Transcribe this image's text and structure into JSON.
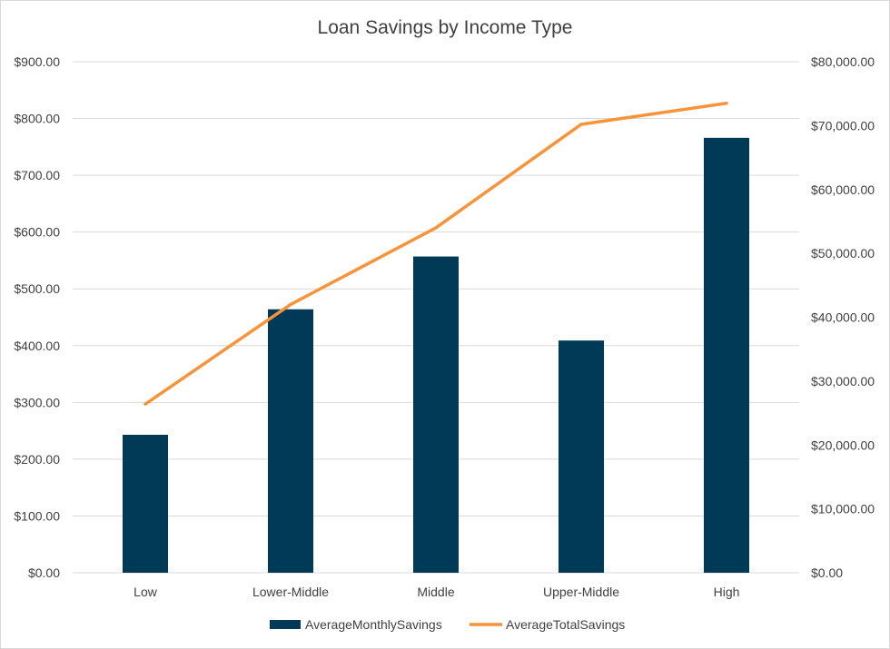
{
  "chart_data": {
    "type": "bar",
    "title": "Loan Savings by Income Type",
    "categories": [
      "Low",
      "Lower-Middle",
      "Middle",
      "Upper-Middle",
      "High"
    ],
    "series": [
      {
        "name": "AverageMonthlySavings",
        "type": "bar",
        "axis": "left",
        "color": "#003A57",
        "values": [
          243,
          464,
          557,
          409,
          766
        ]
      },
      {
        "name": "AverageTotalSavings",
        "type": "line",
        "axis": "right",
        "color": "#F7943A",
        "values": [
          26400,
          42000,
          54000,
          70200,
          73500
        ]
      }
    ],
    "y_left": {
      "min": 0,
      "max": 900,
      "step": 100,
      "tick_labels": [
        "$0.00",
        "$100.00",
        "$200.00",
        "$300.00",
        "$400.00",
        "$500.00",
        "$600.00",
        "$700.00",
        "$800.00",
        "$900.00"
      ]
    },
    "y_right": {
      "min": 0,
      "max": 80000,
      "step": 10000,
      "tick_labels": [
        "$0.00",
        "$10,000.00",
        "$20,000.00",
        "$30,000.00",
        "$40,000.00",
        "$50,000.00",
        "$60,000.00",
        "$70,000.00",
        "$80,000.00"
      ]
    },
    "grid": true,
    "legend": "bottom",
    "xlabel": "",
    "ylabel": ""
  }
}
